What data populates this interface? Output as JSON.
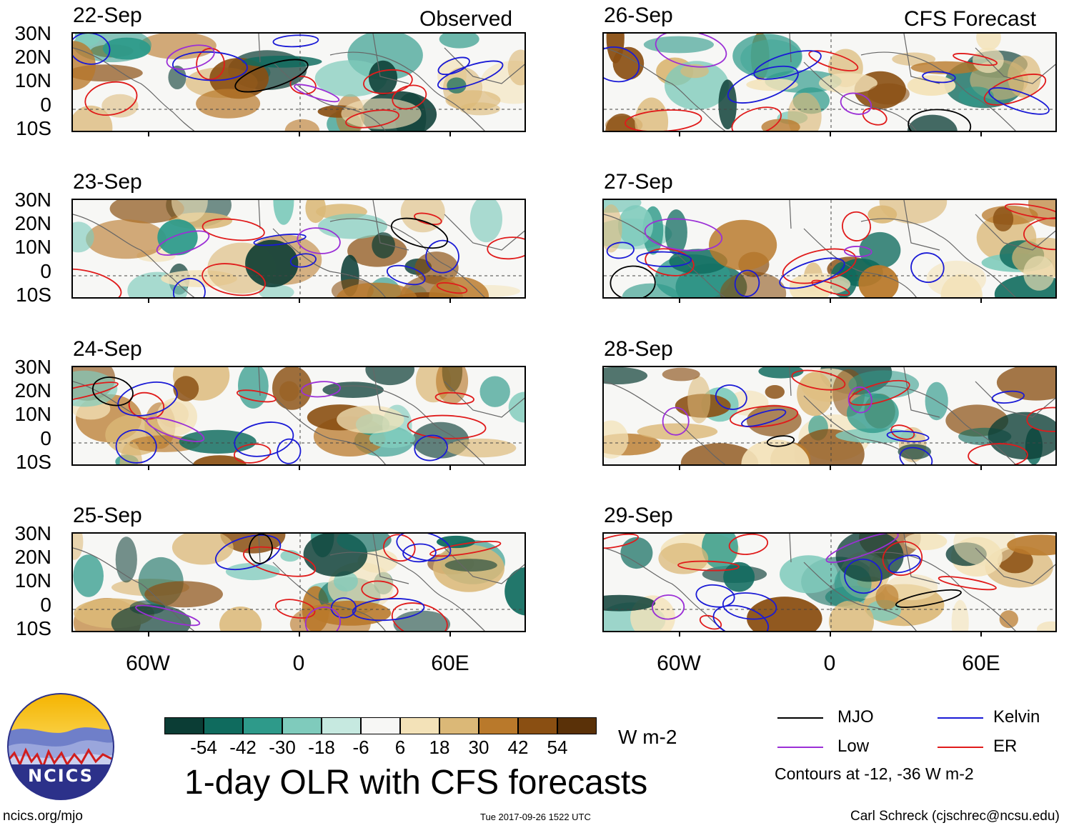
{
  "title": "1-day OLR with CFS forecasts",
  "columns": {
    "left_header": "Observed",
    "right_header": "CFS Forecast"
  },
  "panels": [
    {
      "date": "22-Sep",
      "column": "observed"
    },
    {
      "date": "23-Sep",
      "column": "observed"
    },
    {
      "date": "24-Sep",
      "column": "observed"
    },
    {
      "date": "25-Sep",
      "column": "observed"
    },
    {
      "date": "26-Sep",
      "column": "forecast"
    },
    {
      "date": "27-Sep",
      "column": "forecast"
    },
    {
      "date": "28-Sep",
      "column": "forecast"
    },
    {
      "date": "29-Sep",
      "column": "forecast"
    }
  ],
  "lat_labels": [
    "30N",
    "20N",
    "10N",
    "0",
    "10S"
  ],
  "lon_labels": [
    "60W",
    "0",
    "60E"
  ],
  "colorbar": {
    "colors": [
      "#0b3d35",
      "#0f6b5e",
      "#2e9a8a",
      "#7fcbbc",
      "#c6e9e0",
      "#f7f7f5",
      "#f3e2b8",
      "#dbb877",
      "#b9792b",
      "#8a4f12",
      "#5a3108"
    ],
    "labels": [
      "-54",
      "-42",
      "-30",
      "-18",
      "-6",
      "6",
      "18",
      "30",
      "42",
      "54"
    ],
    "unit": "W m-2"
  },
  "legend": {
    "items": [
      {
        "label": "MJO",
        "color": "#000000"
      },
      {
        "label": "Kelvin",
        "color": "#1a1ad6"
      },
      {
        "label": "Low",
        "color": "#9b2fd6"
      },
      {
        "label": "ER",
        "color": "#e01b1b"
      }
    ],
    "note": "Contours at -12, -36 W m-2"
  },
  "logo_text": "NCICS",
  "footer": {
    "left": "ncics.org/mjo",
    "center": "Tue 2017-09-26 1522 UTC",
    "right": "Carl Schreck (cjschrec@ncsu.edu)"
  }
}
